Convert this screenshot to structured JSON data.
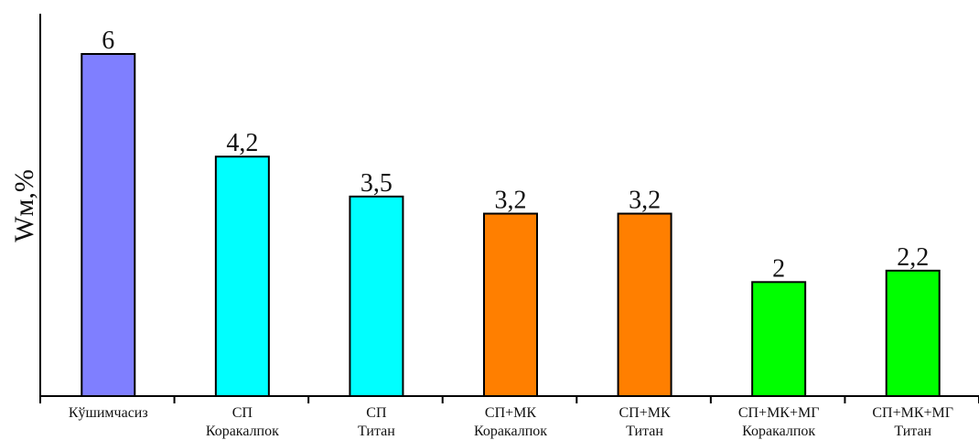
{
  "chart_data": {
    "type": "bar",
    "title": "",
    "xlabel": "",
    "ylabel": "Wм,%",
    "categories": [
      [
        "Кўшимчасиз"
      ],
      [
        "СП",
        "Коракалпок"
      ],
      [
        "СП",
        "Титан"
      ],
      [
        "СП+МК",
        "Коракалпок"
      ],
      [
        "СП+МК",
        "Титан"
      ],
      [
        "СП+МК+МГ",
        "Коракалпок"
      ],
      [
        "СП+МК+МГ",
        "Титан"
      ]
    ],
    "values": [
      6,
      4.2,
      3.5,
      3.2,
      3.2,
      2,
      2.2
    ],
    "value_labels": [
      "6",
      "4,2",
      "3,5",
      "3,2",
      "3,2",
      "2",
      "2,2"
    ],
    "colors": [
      "#7f7fff",
      "#00ffff",
      "#00ffff",
      "#ff7f00",
      "#ff7f00",
      "#00ff00",
      "#00ff00"
    ],
    "ylim": [
      0,
      6.7
    ],
    "grid": false,
    "legend": "none"
  }
}
